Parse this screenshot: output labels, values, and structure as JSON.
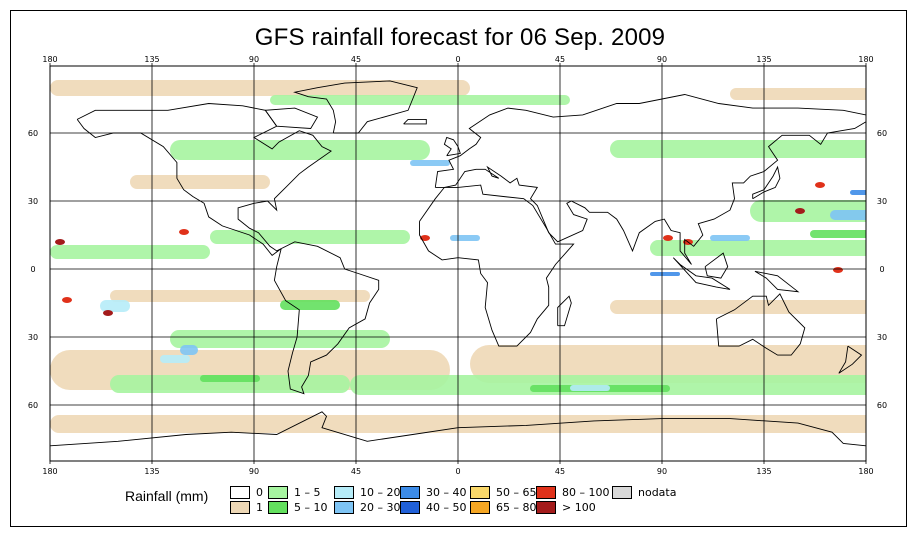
{
  "title": "GFS rainfall forecast for 06 Sep. 2009",
  "axes": {
    "top_lon_labels": [
      "180",
      "135",
      "90",
      "45",
      "0",
      "45",
      "90",
      "135",
      "180"
    ],
    "bottom_lon_labels": [
      "180",
      "135",
      "90",
      "45",
      "0",
      "45",
      "90",
      "135",
      "180"
    ],
    "left_lat_labels": [
      "60",
      "30",
      "0",
      "30",
      "60"
    ],
    "right_lat_labels": [
      "60",
      "30",
      "0",
      "30",
      "60"
    ]
  },
  "legend": {
    "title": "Rainfall (mm)",
    "items": [
      {
        "label": "0",
        "color": "#ffffff"
      },
      {
        "label": "1",
        "color": "#eed8b6"
      },
      {
        "label": "1 – 5",
        "color": "#a6f4a0"
      },
      {
        "label": "5 – 10",
        "color": "#63e05e"
      },
      {
        "label": "10 – 20",
        "color": "#b6ecf8"
      },
      {
        "label": "20 – 30",
        "color": "#7ec4f4"
      },
      {
        "label": "30 – 40",
        "color": "#3d8ce8"
      },
      {
        "label": "40 – 50",
        "color": "#2060d8"
      },
      {
        "label": "50 – 65",
        "color": "#fad86a"
      },
      {
        "label": "65 – 80",
        "color": "#f5a623"
      },
      {
        "label": "80 – 100",
        "color": "#e0311a"
      },
      {
        "label": "> 100",
        "color": "#a31b1b"
      },
      {
        "label": "nodata",
        "color": "#d8d8d8"
      }
    ]
  },
  "colors": {
    "light_rain": "#a6f4a0",
    "trace": "#eed8b6",
    "moderate": "#63e05e",
    "blue_light": "#b6ecf8",
    "blue_mid": "#7ec4f4",
    "blue_dark": "#3d8ce8",
    "red": "#e0311a",
    "dark_red": "#a31b1b",
    "coast": "#000000"
  }
}
